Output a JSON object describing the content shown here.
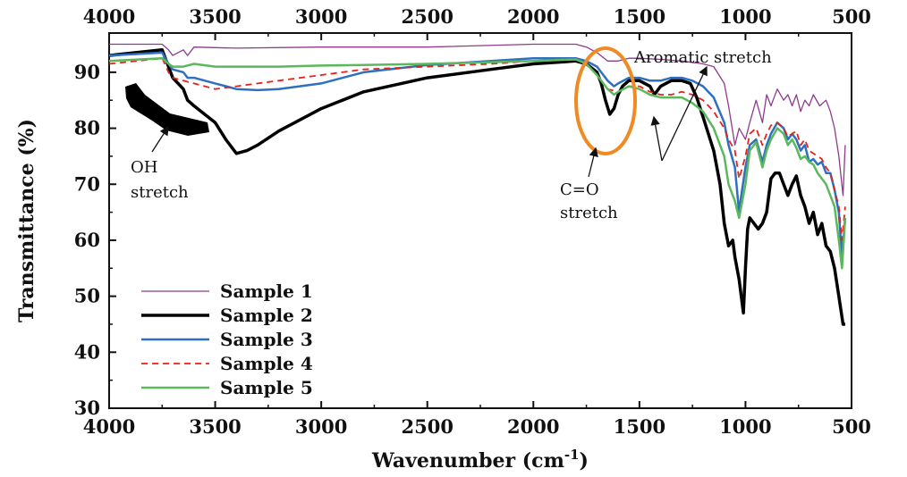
{
  "chart_data": {
    "type": "line",
    "title": "",
    "xlabel": "Wavenumber (cm",
    "xlabel_sup": "-1",
    "xlabel_close": ")",
    "ylabel": "Transmittance (%)",
    "xlim": [
      4000,
      500
    ],
    "ylim": [
      30,
      97
    ],
    "x_ticks": [
      4000,
      3500,
      3000,
      2500,
      2000,
      1500,
      1000,
      500
    ],
    "y_ticks": [
      30,
      40,
      50,
      60,
      70,
      80,
      90
    ],
    "grid": false,
    "legend_position": "bottom-left",
    "series": [
      {
        "name": "Sample 1",
        "color": "#8e3a8e",
        "style": "thin",
        "x": [
          4000,
          3750,
          3720,
          3700,
          3650,
          3630,
          3600,
          3400,
          3000,
          2500,
          2000,
          1800,
          1750,
          1700,
          1650,
          1600,
          1550,
          1500,
          1400,
          1300,
          1200,
          1150,
          1100,
          1080,
          1050,
          1030,
          1000,
          980,
          950,
          920,
          900,
          880,
          850,
          820,
          800,
          780,
          760,
          740,
          720,
          700,
          680,
          650,
          620,
          600,
          580,
          560,
          540,
          530
        ],
        "y": [
          95,
          95,
          94,
          93,
          94,
          93,
          94.5,
          94.3,
          94.5,
          94.5,
          95,
          95,
          94.5,
          93.5,
          92,
          92,
          92.5,
          92.5,
          92.3,
          92,
          91.5,
          91,
          88,
          84,
          77,
          80,
          78,
          81,
          85,
          81,
          86,
          84,
          87,
          85,
          86,
          84,
          86,
          83,
          85,
          84,
          86,
          84,
          85,
          83,
          80,
          75,
          68,
          77
        ]
      },
      {
        "name": "Sample 2",
        "color": "#000000",
        "style": "thick",
        "x": [
          4000,
          3750,
          3720,
          3700,
          3650,
          3630,
          3600,
          3500,
          3450,
          3400,
          3350,
          3300,
          3200,
          3000,
          2800,
          2500,
          2200,
          2000,
          1800,
          1750,
          1700,
          1680,
          1660,
          1640,
          1620,
          1600,
          1580,
          1550,
          1500,
          1450,
          1430,
          1400,
          1350,
          1300,
          1260,
          1230,
          1200,
          1150,
          1120,
          1100,
          1080,
          1060,
          1050,
          1030,
          1010,
          1000,
          990,
          980,
          960,
          940,
          920,
          900,
          880,
          860,
          840,
          820,
          800,
          780,
          760,
          740,
          720,
          700,
          680,
          660,
          640,
          620,
          600,
          580,
          560,
          540,
          530
        ],
        "y": [
          93,
          94,
          91,
          89,
          87,
          85,
          84,
          81,
          78,
          75.5,
          76,
          77,
          79.5,
          83.5,
          86.5,
          89,
          90.5,
          91.5,
          92,
          91.5,
          90,
          88,
          85,
          82.5,
          83.5,
          86,
          87.5,
          88.5,
          88.5,
          87.5,
          86,
          87.5,
          88.5,
          88.5,
          88,
          85.5,
          82,
          76,
          70,
          63,
          59,
          60,
          57,
          53,
          47,
          55,
          62,
          64,
          63,
          62,
          63,
          65,
          71,
          72,
          72,
          70,
          68,
          70,
          71.5,
          68,
          66,
          63,
          65,
          61,
          63,
          59,
          58,
          55,
          50,
          45,
          45
        ]
      },
      {
        "name": "Sample 3",
        "color": "#2f6fbf",
        "style": "medium",
        "x": [
          4000,
          3750,
          3720,
          3700,
          3650,
          3630,
          3600,
          3500,
          3400,
          3300,
          3200,
          3000,
          2800,
          2500,
          2200,
          2000,
          1800,
          1750,
          1700,
          1650,
          1620,
          1600,
          1550,
          1500,
          1450,
          1400,
          1350,
          1300,
          1250,
          1200,
          1150,
          1100,
          1080,
          1050,
          1030,
          1020,
          1000,
          980,
          950,
          920,
          900,
          880,
          850,
          820,
          800,
          780,
          760,
          740,
          720,
          700,
          680,
          660,
          640,
          620,
          600,
          580,
          560,
          545,
          530
        ],
        "y": [
          93,
          93.5,
          91.5,
          90.5,
          90,
          89,
          89,
          88,
          87,
          86.8,
          87,
          88,
          90,
          91.3,
          92,
          92.5,
          92.5,
          92,
          91,
          88.5,
          87.5,
          88,
          89,
          89,
          88.5,
          88.5,
          89,
          89,
          88.5,
          87.5,
          85.5,
          81,
          77,
          73,
          65,
          68,
          73,
          77,
          78,
          74,
          77,
          79,
          81,
          80,
          78,
          79,
          78,
          76,
          77,
          74,
          74.5,
          73.5,
          74,
          72,
          72,
          69,
          65,
          57,
          64
        ]
      },
      {
        "name": "Sample 4",
        "color": "#e2231a",
        "style": "dashed",
        "x": [
          4000,
          3750,
          3720,
          3700,
          3650,
          3600,
          3500,
          3400,
          3300,
          3200,
          3000,
          2800,
          2500,
          2200,
          2000,
          1800,
          1750,
          1700,
          1650,
          1600,
          1550,
          1500,
          1450,
          1400,
          1350,
          1300,
          1250,
          1200,
          1150,
          1100,
          1080,
          1050,
          1030,
          1000,
          980,
          950,
          920,
          900,
          880,
          850,
          820,
          800,
          780,
          760,
          740,
          720,
          700,
          680,
          660,
          640,
          620,
          600,
          580,
          560,
          545,
          530
        ],
        "y": [
          91.5,
          92.5,
          90,
          89,
          88.5,
          88,
          87,
          87.5,
          88,
          88.5,
          89.5,
          90.5,
          91,
          91.5,
          92,
          92.3,
          91.5,
          89.5,
          87,
          86.5,
          87.5,
          87.5,
          86.5,
          86,
          86,
          86.5,
          86,
          85,
          83,
          80,
          78,
          76,
          71,
          75,
          79,
          80,
          77,
          79,
          80.5,
          81,
          80,
          78.5,
          79,
          79.5,
          77,
          78,
          76,
          75.5,
          75,
          74.5,
          73,
          72,
          69,
          66,
          60,
          66
        ]
      },
      {
        "name": "Sample 5",
        "color": "#5cb85c",
        "style": "medium",
        "x": [
          4000,
          3750,
          3720,
          3700,
          3650,
          3600,
          3500,
          3400,
          3200,
          3000,
          2800,
          2500,
          2200,
          2000,
          1800,
          1750,
          1700,
          1650,
          1620,
          1600,
          1550,
          1500,
          1450,
          1400,
          1350,
          1300,
          1250,
          1200,
          1150,
          1100,
          1080,
          1050,
          1030,
          1000,
          980,
          950,
          920,
          900,
          880,
          850,
          820,
          800,
          780,
          760,
          740,
          720,
          700,
          680,
          660,
          640,
          620,
          600,
          580,
          560,
          545,
          530
        ],
        "y": [
          92,
          92.5,
          91.5,
          91,
          91,
          91.5,
          91,
          91,
          91,
          91.2,
          91.3,
          91.5,
          91.8,
          92,
          92.3,
          91.5,
          89.5,
          87,
          86,
          86.5,
          87.5,
          87,
          86,
          85.5,
          85.5,
          85.5,
          84.5,
          83,
          80,
          75,
          70,
          67,
          64,
          70,
          76,
          77.5,
          73,
          76,
          78,
          80,
          79,
          77,
          78,
          76.5,
          74.5,
          75,
          74,
          73.5,
          72,
          71,
          70,
          68,
          66,
          60,
          55,
          64
        ]
      }
    ],
    "annotations": [
      {
        "id": "oh",
        "lines": [
          "OH",
          "stretch"
        ]
      },
      {
        "id": "co",
        "lines": [
          "C=O",
          "stretch"
        ]
      },
      {
        "id": "aromatic",
        "lines": [
          "Aromatic stretch"
        ]
      }
    ]
  }
}
